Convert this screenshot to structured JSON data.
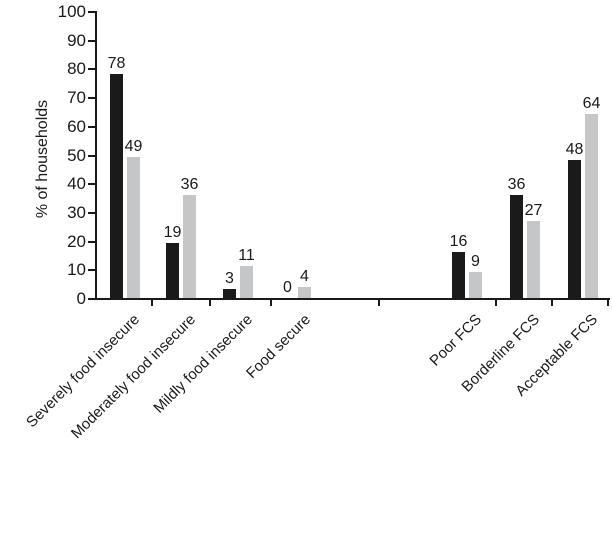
{
  "chart_data": {
    "type": "bar",
    "title": "",
    "xlabel": "",
    "ylabel": "% of households",
    "ylim": [
      0,
      100
    ],
    "ytick_step": 10,
    "grid": false,
    "legend_position": "none",
    "value_labels": true,
    "categories": [
      "Severely food insecure",
      "Moderately food insecure",
      "Mildly food insecure",
      "Food secure",
      "Poor FCS",
      "Borderline FCS",
      "Acceptable FCS"
    ],
    "series": [
      {
        "name": "series-black",
        "color": "#1a1a1a",
        "values": [
          78,
          19,
          3,
          0,
          16,
          36,
          48
        ]
      },
      {
        "name": "series-gray",
        "color": "#c5c6c8",
        "values": [
          49,
          36,
          11,
          4,
          9,
          27,
          64
        ]
      }
    ]
  }
}
